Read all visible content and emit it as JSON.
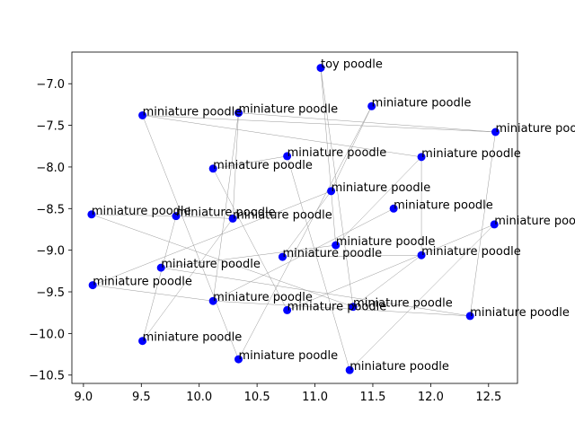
{
  "chart_data": {
    "type": "scatter",
    "title": "",
    "xlabel": "",
    "ylabel": "",
    "xlim": [
      8.9,
      12.75
    ],
    "ylim": [
      -10.6,
      -6.62
    ],
    "xticks": [
      9.0,
      9.5,
      10.0,
      10.5,
      11.0,
      11.5,
      12.0,
      12.5
    ],
    "yticks": [
      -7.0,
      -7.5,
      -8.0,
      -8.5,
      -9.0,
      -9.5,
      -10.0,
      -10.5
    ],
    "xtick_labels": [
      "9.0",
      "9.5",
      "10.0",
      "10.5",
      "11.0",
      "11.5",
      "12.0",
      "12.5"
    ],
    "ytick_labels": [
      "−7.0",
      "−7.5",
      "−8.0",
      "−8.5",
      "−9.0",
      "−9.5",
      "−10.0",
      "−10.5"
    ],
    "grid": false,
    "point_color": "#0000ff",
    "edge_color": "#999999",
    "points": [
      {
        "x": 11.05,
        "y": -6.81,
        "label": "toy poodle"
      },
      {
        "x": 11.49,
        "y": -7.27,
        "label": "miniature poodle"
      },
      {
        "x": 9.51,
        "y": -7.38,
        "label": "miniature poodle"
      },
      {
        "x": 10.34,
        "y": -7.35,
        "label": "miniature poodle"
      },
      {
        "x": 12.56,
        "y": -7.58,
        "label": "miniature poodle"
      },
      {
        "x": 10.76,
        "y": -7.87,
        "label": "miniature poodle"
      },
      {
        "x": 11.92,
        "y": -7.88,
        "label": "miniature poodle"
      },
      {
        "x": 10.12,
        "y": -8.02,
        "label": "miniature poodle"
      },
      {
        "x": 11.14,
        "y": -8.29,
        "label": "miniature poodle"
      },
      {
        "x": 11.68,
        "y": -8.5,
        "label": "miniature poodle"
      },
      {
        "x": 9.07,
        "y": -8.57,
        "label": "miniature poodle"
      },
      {
        "x": 9.8,
        "y": -8.59,
        "label": "miniature poodle"
      },
      {
        "x": 10.29,
        "y": -8.62,
        "label": "miniature poodle"
      },
      {
        "x": 12.55,
        "y": -8.69,
        "label": "miniature poodle"
      },
      {
        "x": 11.18,
        "y": -8.94,
        "label": "miniature poodle"
      },
      {
        "x": 10.72,
        "y": -9.08,
        "label": "miniature poodle"
      },
      {
        "x": 11.92,
        "y": -9.06,
        "label": "miniature poodle"
      },
      {
        "x": 9.67,
        "y": -9.21,
        "label": "miniature poodle"
      },
      {
        "x": 9.08,
        "y": -9.42,
        "label": "miniature poodle"
      },
      {
        "x": 10.12,
        "y": -9.61,
        "label": "miniature poodle"
      },
      {
        "x": 11.33,
        "y": -9.68,
        "label": "miniature poodle"
      },
      {
        "x": 10.76,
        "y": -9.72,
        "label": "miniature poodle"
      },
      {
        "x": 12.34,
        "y": -9.79,
        "label": "miniature poodle"
      },
      {
        "x": 9.51,
        "y": -10.09,
        "label": "miniature poodle"
      },
      {
        "x": 10.34,
        "y": -10.31,
        "label": "miniature poodle"
      },
      {
        "x": 11.3,
        "y": -10.44,
        "label": "miniature poodle"
      }
    ],
    "edges": [
      [
        0,
        14
      ],
      [
        0,
        20
      ],
      [
        1,
        8
      ],
      [
        1,
        24
      ],
      [
        2,
        4
      ],
      [
        2,
        6
      ],
      [
        2,
        24
      ],
      [
        3,
        12
      ],
      [
        3,
        4
      ],
      [
        4,
        22
      ],
      [
        5,
        7
      ],
      [
        5,
        25
      ],
      [
        6,
        16
      ],
      [
        7,
        21
      ],
      [
        8,
        15
      ],
      [
        8,
        18
      ],
      [
        9,
        19
      ],
      [
        10,
        11
      ],
      [
        10,
        20
      ],
      [
        11,
        12
      ],
      [
        12,
        23
      ],
      [
        13,
        21
      ],
      [
        13,
        25
      ],
      [
        14,
        17
      ],
      [
        15,
        16
      ],
      [
        16,
        20
      ],
      [
        17,
        22
      ],
      [
        18,
        19
      ],
      [
        19,
        22
      ],
      [
        3,
        19
      ],
      [
        23,
        11
      ],
      [
        14,
        6
      ]
    ]
  }
}
